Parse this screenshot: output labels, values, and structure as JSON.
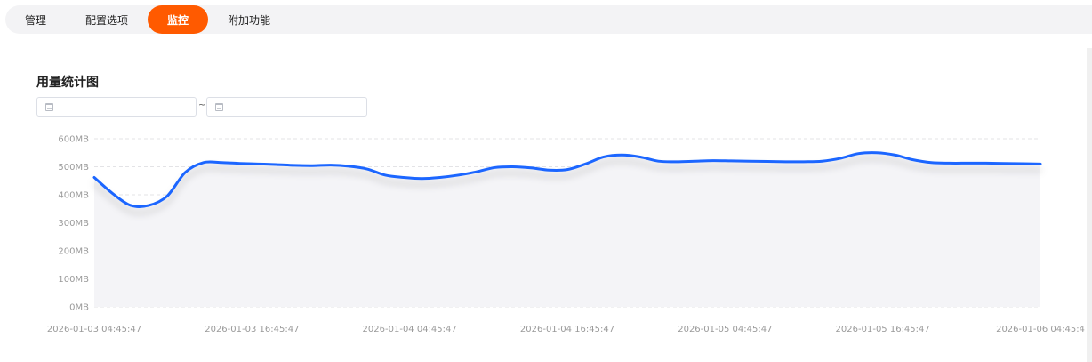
{
  "tabs": [
    {
      "label": "管理",
      "active": false
    },
    {
      "label": "配置选项",
      "active": false
    },
    {
      "label": "监控",
      "active": true
    },
    {
      "label": "附加功能",
      "active": false
    }
  ],
  "section_title": "用量统计图",
  "date_range": {
    "start_placeholder": "",
    "end_placeholder": "",
    "separator": "~"
  },
  "colors": {
    "accent": "#ff5a00",
    "line": "#1a66ff",
    "area": "#f4f4f7"
  },
  "chart_data": {
    "type": "area",
    "title": "",
    "xlabel": "",
    "ylabel": "",
    "ylim": [
      0,
      600
    ],
    "y_unit": "MB",
    "yticks": [
      "0MB",
      "100MB",
      "200MB",
      "300MB",
      "400MB",
      "500MB",
      "600MB"
    ],
    "yvalues": [
      0,
      100,
      200,
      300,
      400,
      500,
      600
    ],
    "xticks": [
      "2026-01-03 04:45:47",
      "2026-01-03 16:45:47",
      "2026-01-04 04:45:47",
      "2026-01-04 16:45:47",
      "2026-01-05 04:45:47",
      "2026-01-05 16:45:47",
      "2026-01-06 04:45:4"
    ],
    "grid": true,
    "series": [
      {
        "x_hours": [
          0,
          4,
          8,
          12,
          16,
          20,
          24,
          28,
          32,
          36,
          40,
          44,
          48,
          52,
          56,
          60,
          64,
          68,
          72
        ],
        "values": [
          462,
          360,
          380,
          510,
          512,
          508,
          503,
          505,
          475,
          460,
          470,
          495,
          500,
          488,
          530,
          540,
          520,
          520,
          515
        ]
      }
    ],
    "series_points": [
      [
        0,
        462
      ],
      [
        2,
        405
      ],
      [
        4,
        362
      ],
      [
        6,
        362
      ],
      [
        8,
        395
      ],
      [
        10,
        480
      ],
      [
        12,
        515
      ],
      [
        14,
        515
      ],
      [
        16,
        512
      ],
      [
        18,
        510
      ],
      [
        20,
        508
      ],
      [
        22,
        505
      ],
      [
        24,
        504
      ],
      [
        26,
        506
      ],
      [
        28,
        502
      ],
      [
        30,
        492
      ],
      [
        32,
        470
      ],
      [
        34,
        462
      ],
      [
        36,
        458
      ],
      [
        38,
        462
      ],
      [
        40,
        470
      ],
      [
        42,
        482
      ],
      [
        44,
        497
      ],
      [
        46,
        500
      ],
      [
        48,
        496
      ],
      [
        50,
        488
      ],
      [
        52,
        490
      ],
      [
        54,
        510
      ],
      [
        56,
        535
      ],
      [
        58,
        542
      ],
      [
        60,
        535
      ],
      [
        62,
        520
      ],
      [
        64,
        518
      ],
      [
        66,
        520
      ],
      [
        68,
        522
      ],
      [
        70,
        521
      ],
      [
        72,
        520
      ],
      [
        74,
        519
      ],
      [
        76,
        518
      ],
      [
        78,
        518
      ],
      [
        80,
        520
      ],
      [
        82,
        530
      ],
      [
        84,
        547
      ],
      [
        86,
        550
      ],
      [
        88,
        542
      ],
      [
        90,
        525
      ],
      [
        92,
        515
      ],
      [
        94,
        513
      ],
      [
        96,
        513
      ],
      [
        98,
        513
      ],
      [
        100,
        512
      ],
      [
        102,
        511
      ],
      [
        104,
        510
      ]
    ],
    "x_range_hours": [
      0,
      104
    ]
  }
}
